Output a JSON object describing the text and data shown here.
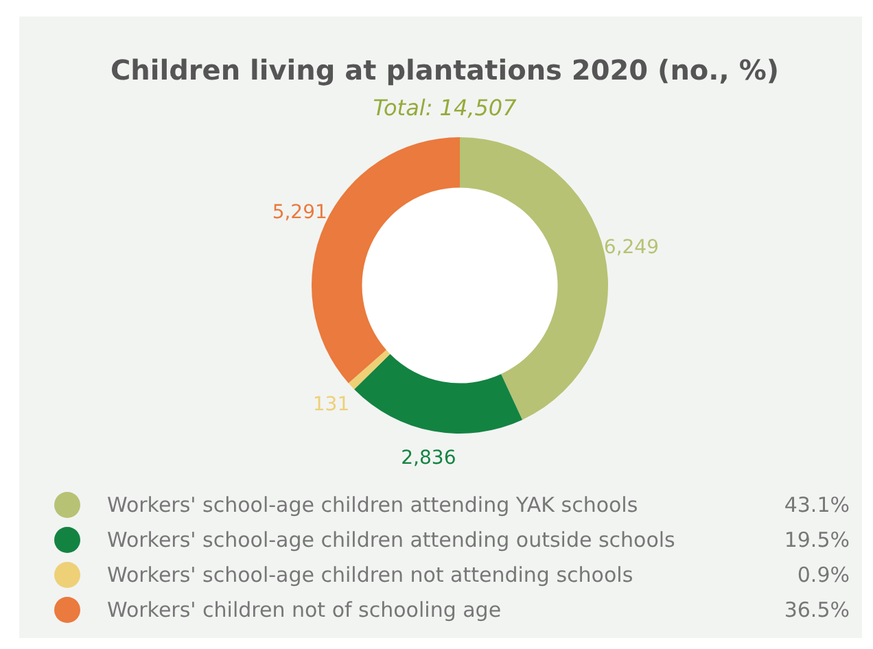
{
  "chart_data": {
    "type": "donut",
    "title": "Children living at plantations 2020 (no., %)",
    "subtitle": "Total: 14,507",
    "categories": [
      "Workers' school-age children attending YAK schools",
      "Workers' school-age children attending outside schools",
      "Workers' school-age children not attending schools",
      "Workers' children not of schooling age"
    ],
    "values": [
      6249,
      2836,
      131,
      5291
    ],
    "colors": [
      "#b7c274",
      "#138342",
      "#eed077",
      "#ea7a3d"
    ],
    "value_labels": [
      "6,249",
      "2,836",
      "131",
      "5,291"
    ],
    "annotations": [
      "43.1%",
      "19.5%",
      "0.9%",
      "36.5%"
    ],
    "legend": "bottom"
  }
}
